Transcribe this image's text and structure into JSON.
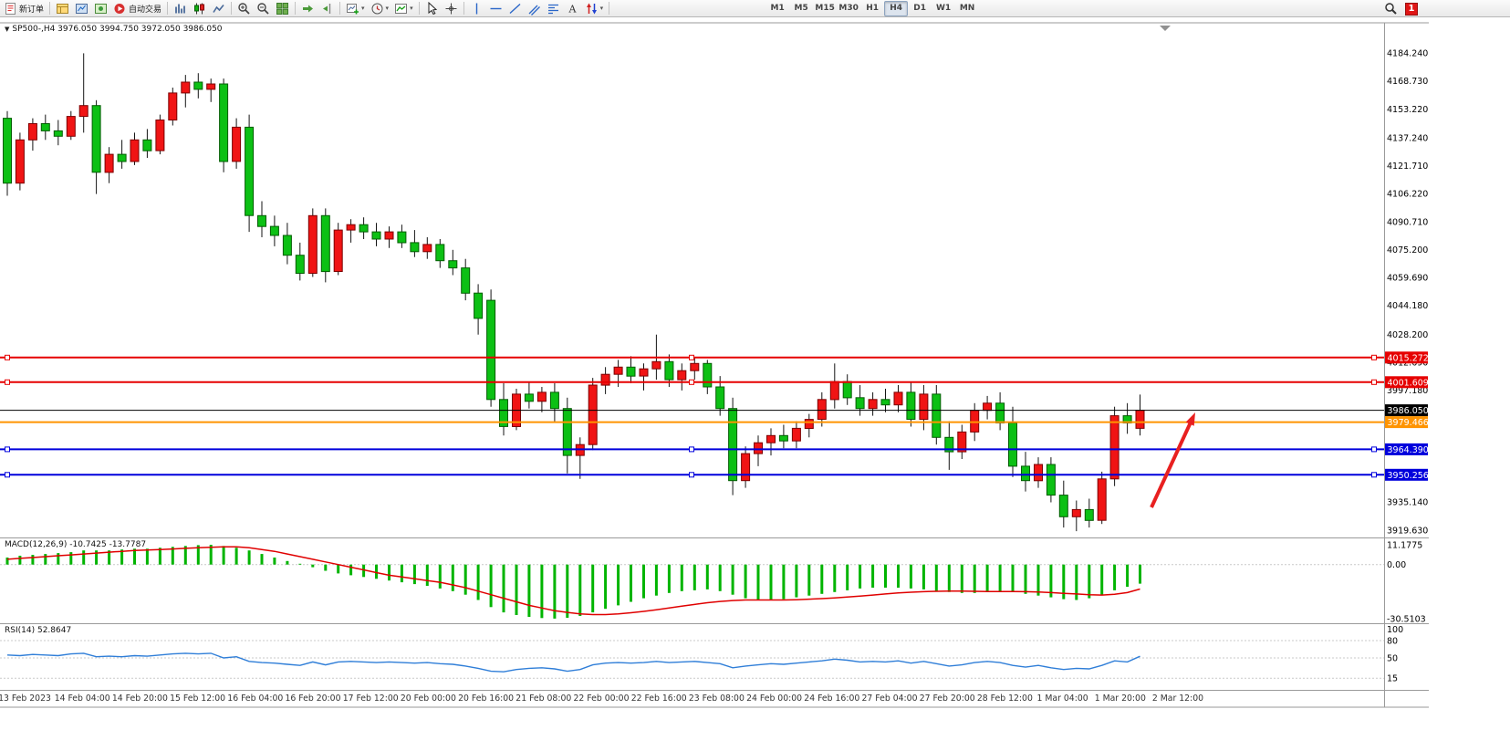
{
  "toolbar": {
    "new_order": "新订单",
    "auto_trading": "自动交易",
    "timeframes": [
      "M1",
      "M5",
      "M15",
      "M30",
      "H1",
      "H4",
      "D1",
      "W1",
      "MN"
    ],
    "active_timeframe": "H4",
    "notification_count": "1"
  },
  "chart": {
    "title": "SP500-,H4 3976.050 3994.750 3972.050 3986.050",
    "symbol": "SP500-",
    "period": "H4",
    "ohlc": {
      "open": "3976.050",
      "high": "3994.750",
      "low": "3972.050",
      "close": "3986.050"
    },
    "macd": {
      "name": "MACD(12,26,9)",
      "value_main": "-10.7425",
      "value_signal": "-13.7787"
    },
    "rsi": {
      "name": "RSI(14)",
      "value": "52.8647"
    }
  },
  "chart_data": {
    "type": "candlestick",
    "symbol": "SP500-",
    "period": "H4",
    "up_color": "#f01414",
    "down_color": "#0cc014",
    "price_axis": {
      "range": [
        3916.0,
        4199.4
      ],
      "labels": [
        {
          "text": "4184.240",
          "price": 4184.24
        },
        {
          "text": "4168.730",
          "price": 4168.73
        },
        {
          "text": "4153.220",
          "price": 4153.22
        },
        {
          "text": "4137.240",
          "price": 4137.24
        },
        {
          "text": "4121.710",
          "price": 4121.71
        },
        {
          "text": "4106.220",
          "price": 4106.22
        },
        {
          "text": "4090.710",
          "price": 4090.71
        },
        {
          "text": "4075.200",
          "price": 4075.2
        },
        {
          "text": "4059.690",
          "price": 4059.69
        },
        {
          "text": "4044.180",
          "price": 4044.18
        },
        {
          "text": "4028.200",
          "price": 4028.2
        },
        {
          "text": "4012.690",
          "price": 4012.69
        },
        {
          "text": "3997.180",
          "price": 3997.18
        },
        {
          "text": "3935.140",
          "price": 3935.14
        },
        {
          "text": "3919.630",
          "price": 3919.63
        }
      ]
    },
    "hlines": [
      {
        "price": 4015.272,
        "label": "4015.272",
        "color": "#e60000",
        "width": 2,
        "selected": true
      },
      {
        "price": 4001.609,
        "label": "4001.609",
        "color": "#e60000",
        "width": 2,
        "selected": true
      },
      {
        "price": 3986.05,
        "label": "3986.050",
        "color": "#000000",
        "width": 1,
        "selected": false
      },
      {
        "price": 3979.466,
        "label": "3979.466",
        "color": "#ff9400",
        "width": 2,
        "selected": false
      },
      {
        "price": 3964.39,
        "label": "3964.390",
        "color": "#0000dc",
        "width": 2,
        "selected": true
      },
      {
        "price": 3950.256,
        "label": "3950.256",
        "color": "#0000dc",
        "width": 2,
        "selected": true
      }
    ],
    "time_labels": [
      "13 Feb 2023",
      "14 Feb 04:00",
      "14 Feb 20:00",
      "15 Feb 12:00",
      "16 Feb 04:00",
      "16 Feb 20:00",
      "17 Feb 12:00",
      "20 Feb 00:00",
      "20 Feb 16:00",
      "21 Feb 08:00",
      "22 Feb 00:00",
      "22 Feb 16:00",
      "23 Feb 08:00",
      "24 Feb 00:00",
      "24 Feb 16:00",
      "27 Feb 04:00",
      "27 Feb 20:00",
      "28 Feb 12:00",
      "1 Mar 04:00",
      "1 Mar 20:00",
      "2 Mar 12:00"
    ],
    "candles": [
      [
        4148,
        4152,
        4105,
        4112
      ],
      [
        4112,
        4140,
        4108,
        4136
      ],
      [
        4136,
        4148,
        4130,
        4145
      ],
      [
        4145,
        4150,
        4136,
        4141
      ],
      [
        4141,
        4147,
        4133,
        4138
      ],
      [
        4138,
        4152,
        4136,
        4149
      ],
      [
        4149,
        4184,
        4140,
        4155
      ],
      [
        4155,
        4158,
        4106,
        4118
      ],
      [
        4118,
        4132,
        4112,
        4128
      ],
      [
        4128,
        4136,
        4120,
        4124
      ],
      [
        4124,
        4140,
        4122,
        4136
      ],
      [
        4136,
        4142,
        4126,
        4130
      ],
      [
        4130,
        4150,
        4128,
        4147
      ],
      [
        4147,
        4165,
        4144,
        4162
      ],
      [
        4162,
        4172,
        4154,
        4168
      ],
      [
        4168,
        4173,
        4159,
        4164
      ],
      [
        4164,
        4170,
        4157,
        4167
      ],
      [
        4167,
        4170,
        4118,
        4124
      ],
      [
        4124,
        4148,
        4120,
        4143
      ],
      [
        4143,
        4150,
        4085,
        4094
      ],
      [
        4094,
        4102,
        4082,
        4088
      ],
      [
        4088,
        4094,
        4077,
        4083
      ],
      [
        4083,
        4090,
        4067,
        4072
      ],
      [
        4072,
        4079,
        4058,
        4062
      ],
      [
        4062,
        4098,
        4060,
        4094
      ],
      [
        4094,
        4098,
        4057,
        4063
      ],
      [
        4063,
        4090,
        4061,
        4086
      ],
      [
        4086,
        4092,
        4079,
        4089
      ],
      [
        4089,
        4093,
        4081,
        4085
      ],
      [
        4085,
        4090,
        4077,
        4081
      ],
      [
        4081,
        4088,
        4076,
        4085
      ],
      [
        4085,
        4089,
        4076,
        4079
      ],
      [
        4079,
        4086,
        4071,
        4074
      ],
      [
        4074,
        4082,
        4070,
        4078
      ],
      [
        4078,
        4081,
        4065,
        4069
      ],
      [
        4069,
        4075,
        4061,
        4065
      ],
      [
        4065,
        4070,
        4047,
        4051
      ],
      [
        4051,
        4056,
        4028,
        4037
      ],
      [
        4047,
        4053,
        3988,
        3992
      ],
      [
        3992,
        4001,
        3972,
        3977
      ],
      [
        3977,
        3998,
        3975,
        3995
      ],
      [
        3995,
        4002,
        3987,
        3991
      ],
      [
        3991,
        3999,
        3985,
        3996
      ],
      [
        3996,
        4001,
        3979,
        3987
      ],
      [
        3987,
        3993,
        3951,
        3961
      ],
      [
        3961,
        3971,
        3948,
        3967
      ],
      [
        3967,
        4004,
        3964,
        4000
      ],
      [
        4000,
        4010,
        3995,
        4006
      ],
      [
        4006,
        4014,
        3999,
        4010
      ],
      [
        4010,
        4016,
        4001,
        4005
      ],
      [
        4005,
        4012,
        3997,
        4009
      ],
      [
        4009,
        4028,
        4003,
        4013
      ],
      [
        4013,
        4017,
        3999,
        4003
      ],
      [
        4003,
        4012,
        3997,
        4008
      ],
      [
        4008,
        4015,
        4003,
        4012
      ],
      [
        4012,
        4014,
        3995,
        3999
      ],
      [
        3999,
        4005,
        3983,
        3987
      ],
      [
        3987,
        3993,
        3939,
        3947
      ],
      [
        3947,
        3966,
        3943,
        3962
      ],
      [
        3962,
        3972,
        3955,
        3968
      ],
      [
        3968,
        3976,
        3961,
        3972
      ],
      [
        3972,
        3978,
        3965,
        3969
      ],
      [
        3969,
        3980,
        3965,
        3976
      ],
      [
        3976,
        3984,
        3971,
        3981
      ],
      [
        3981,
        3996,
        3977,
        3992
      ],
      [
        3992,
        4012,
        3987,
        4002
      ],
      [
        4002,
        4006,
        3989,
        3993
      ],
      [
        3993,
        4000,
        3983,
        3987
      ],
      [
        3987,
        3996,
        3983,
        3992
      ],
      [
        3992,
        3998,
        3985,
        3989
      ],
      [
        3989,
        4000,
        3985,
        3996
      ],
      [
        3996,
        4002,
        3977,
        3981
      ],
      [
        3981,
        4000,
        3975,
        3995
      ],
      [
        3995,
        4000,
        3967,
        3971
      ],
      [
        3971,
        3980,
        3953,
        3963
      ],
      [
        3963,
        3978,
        3959,
        3974
      ],
      [
        3974,
        3990,
        3969,
        3986
      ],
      [
        3986,
        3994,
        3981,
        3990
      ],
      [
        3990,
        3996,
        3975,
        3979
      ],
      [
        3979,
        3988,
        3949,
        3955
      ],
      [
        3955,
        3963,
        3941,
        3947
      ],
      [
        3947,
        3960,
        3943,
        3956
      ],
      [
        3956,
        3960,
        3935,
        3939
      ],
      [
        3939,
        3947,
        3921,
        3927
      ],
      [
        3927,
        3936,
        3919,
        3931
      ],
      [
        3931,
        3937,
        3921,
        3925
      ],
      [
        3925,
        3952,
        3923,
        3948
      ],
      [
        3948,
        3988,
        3944,
        3983
      ],
      [
        3983,
        3990,
        3973,
        3979
      ],
      [
        3976.05,
        3994.75,
        3972.05,
        3986.05
      ]
    ],
    "macd": {
      "range": [
        -32.6,
        14.8
      ],
      "hist_color": "#00b400",
      "signal_color": "#e00000",
      "axis_labels": [
        {
          "text": "11.1775",
          "value": 11.1775
        },
        {
          "text": "0.00",
          "value": 0
        },
        {
          "text": "-30.5103",
          "value": -30.5103
        }
      ],
      "histogram": [
        4,
        5,
        5.5,
        6,
        6.5,
        7,
        8,
        8,
        8,
        8.5,
        9,
        9,
        9.5,
        10,
        10.5,
        11,
        11.2,
        10.5,
        9.5,
        8,
        6,
        4,
        2,
        0.5,
        -1.5,
        -3.5,
        -5,
        -6,
        -7,
        -8,
        -9,
        -10,
        -11,
        -12,
        -13.5,
        -15,
        -17,
        -20,
        -24,
        -27,
        -28.5,
        -29.5,
        -30.2,
        -30.5,
        -30,
        -29,
        -27,
        -25,
        -23,
        -21,
        -19,
        -17.5,
        -16,
        -15,
        -14.5,
        -14,
        -15,
        -17,
        -19,
        -20,
        -20,
        -19.5,
        -18.5,
        -17.5,
        -16.5,
        -15.5,
        -14.5,
        -13.5,
        -13,
        -13,
        -13,
        -13.5,
        -14,
        -15,
        -15.5,
        -16,
        -16,
        -15.5,
        -15,
        -15.5,
        -16.5,
        -17.5,
        -18.5,
        -19.5,
        -20,
        -19,
        -17,
        -14.5,
        -12.5,
        -10.7425
      ],
      "signal": [
        3,
        3.5,
        4,
        4.5,
        5,
        5.5,
        6,
        6.5,
        7,
        7.5,
        8,
        8.2,
        8.5,
        8.8,
        9.2,
        9.5,
        9.8,
        10,
        10,
        9.5,
        8.5,
        7.5,
        6,
        4.5,
        3,
        1.5,
        0,
        -1.5,
        -3,
        -4.5,
        -6,
        -7,
        -8,
        -9,
        -10,
        -11.5,
        -13,
        -15,
        -17,
        -19,
        -21,
        -23,
        -24.5,
        -26,
        -27,
        -27.8,
        -28.2,
        -28.2,
        -27.8,
        -27.2,
        -26.4,
        -25.5,
        -24.5,
        -23.5,
        -22.5,
        -21.5,
        -20.8,
        -20.3,
        -20,
        -20,
        -20,
        -20,
        -19.8,
        -19.5,
        -19.2,
        -18.8,
        -18.3,
        -17.8,
        -17.2,
        -16.6,
        -16,
        -15.6,
        -15.3,
        -15.1,
        -15,
        -15,
        -15.1,
        -15.2,
        -15.2,
        -15.2,
        -15.3,
        -15.5,
        -15.8,
        -16.2,
        -16.6,
        -17,
        -17.2,
        -16.8,
        -15.8,
        -13.7787
      ]
    },
    "rsi": {
      "color": "#2f7ed8",
      "levels": [
        80,
        50,
        15
      ],
      "axis_labels": [
        {
          "text": "100",
          "value": 100
        },
        {
          "text": "80",
          "value": 80
        },
        {
          "text": "50",
          "value": 50
        },
        {
          "text": "15",
          "value": 15
        }
      ],
      "values": [
        55,
        54,
        56,
        55,
        54,
        57,
        58,
        52,
        53,
        52,
        54,
        53,
        55,
        57,
        58,
        57,
        58,
        50,
        52,
        44,
        42,
        41,
        39,
        37,
        43,
        38,
        43,
        44,
        43,
        42,
        43,
        42,
        41,
        42,
        40,
        39,
        36,
        32,
        27,
        26,
        30,
        32,
        33,
        31,
        27,
        30,
        38,
        41,
        42,
        41,
        42,
        44,
        42,
        43,
        44,
        42,
        40,
        33,
        36,
        38,
        40,
        39,
        41,
        43,
        45,
        48,
        46,
        43,
        44,
        43,
        45,
        41,
        44,
        40,
        36,
        38,
        42,
        44,
        42,
        37,
        34,
        37,
        33,
        30,
        32,
        31,
        37,
        45,
        43,
        52.8647
      ],
      "ylim": [
        0,
        100
      ]
    },
    "arrow": {
      "from": [
        1262,
        556
      ],
      "to": [
        1310,
        452
      ],
      "color": "#e82020"
    }
  }
}
